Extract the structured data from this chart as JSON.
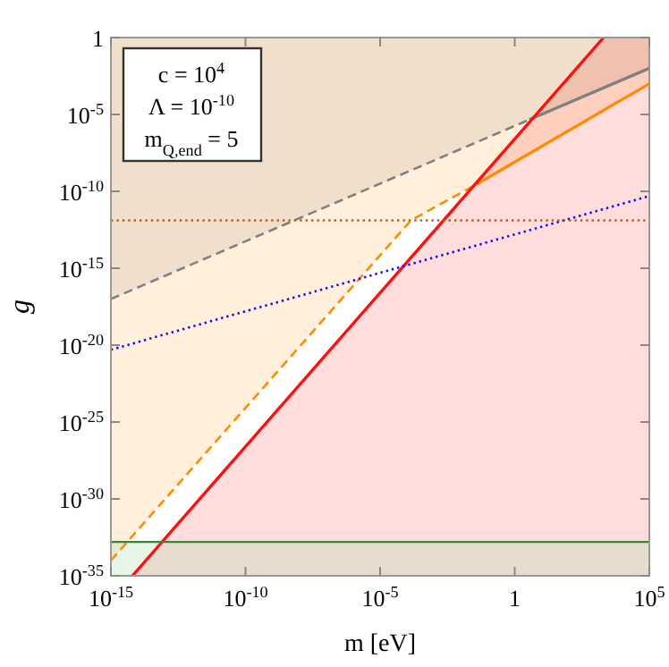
{
  "chart_data": {
    "type": "line",
    "xlabel": "m [eV]",
    "ylabel": "g",
    "log": "xy",
    "grid": false,
    "marker": "none",
    "xlim": [
      1e-15,
      100000.0
    ],
    "ylim": [
      1e-35,
      1
    ],
    "xticks": [
      {
        "value": 1e-15,
        "label": "10$^{-15}$"
      },
      {
        "value": 1e-10,
        "label": "10$^{-10}$"
      },
      {
        "value": 1e-05,
        "label": "10$^{-5}$"
      },
      1,
      {
        "value": 100000.0,
        "label": "10$^{5}$"
      }
    ],
    "yticks": [
      {
        "value": 1e-35,
        "label": "10$^{-35}$"
      },
      {
        "value": 1e-30,
        "label": "10$^{-30}$"
      },
      {
        "value": 1e-25,
        "label": "10$^{-25}$"
      },
      {
        "value": 1e-20,
        "label": "10$^{-20}$"
      },
      {
        "value": 1e-15,
        "label": "10$^{-15}$"
      },
      {
        "value": 1e-10,
        "label": "10$^{-10}$"
      },
      {
        "value": 1e-05,
        "label": "10$^{-5}$"
      },
      1
    ],
    "series": [
      {
        "color": "#808080",
        "line_style": "dashed",
        "x": [
          1e-15,
          3.5
        ],
        "values": [
          1e-17,
          4.6e-06
        ],
        "lower": [
          1e-17,
          4.6e-06
        ],
        "upper": [
          1,
          1
        ]
      },
      {
        "color": "#808080",
        "line_style": "solid",
        "x": [
          3.5,
          100000.0
        ],
        "values": [
          4.6e-06,
          0.01
        ],
        "lower": [
          4.6e-06,
          0.01
        ],
        "upper": [
          1,
          1
        ]
      },
      {
        "color": "#ff8c00",
        "line_style": "dashed",
        "x": [
          1e-15,
          0.00014,
          0.04
        ],
        "values": [
          1e-34,
          1.3e-12,
          3e-10
        ],
        "lower": [
          1e-34,
          1.3e-12,
          3e-10
        ],
        "upper": [
          1,
          1,
          1
        ]
      },
      {
        "color": "#ff8c00",
        "line_style": "solid",
        "x": [
          0.04,
          100000.0
        ],
        "values": [
          3e-10,
          0.001
        ],
        "lower": [
          3e-10,
          0.001
        ],
        "upper": [
          1,
          1
        ]
      },
      {
        "color": "#ff1010",
        "line_style": "solid",
        "x": [
          6.3e-15,
          2000.0,
          100000.0
        ],
        "values": [
          1e-35,
          1,
          null
        ],
        "lower": [
          1e-35,
          1e-35,
          1e-35
        ],
        "upper": [
          1e-35,
          1,
          1
        ]
      },
      {
        "color": "#1010ff",
        "line_style": "dotted",
        "x": [
          1e-15,
          100000.0
        ],
        "values": [
          5e-21,
          5e-11
        ]
      }
    ],
    "bands": [
      {
        "axis": "y",
        "from": 1e-35,
        "to": 1.6e-33,
        "color": "#9fd89f"
      }
    ],
    "ref_lines": [
      {
        "axis": "y",
        "value": 1.3e-12,
        "color": "#c06000",
        "line_style": "dotted"
      },
      {
        "axis": "y",
        "value": 1.6e-33,
        "color": "#2a8c2a",
        "line_style": "solid"
      }
    ],
    "annotations": [
      "c = 10$^{4}$",
      "Λ = 10$^{-10}$",
      "m$_{Q,end}$ = 5"
    ]
  }
}
